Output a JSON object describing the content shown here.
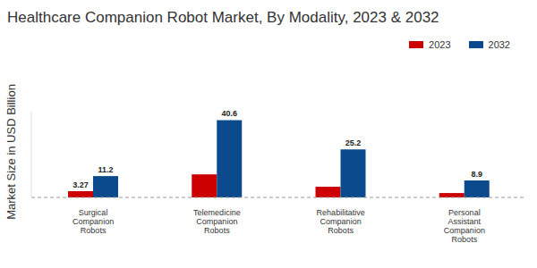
{
  "chart_data": {
    "type": "bar",
    "title": "Healthcare Companion Robot Market, By Modality, 2023 & 2032",
    "y_label": "Market Size in USD Billion",
    "categories": [
      "Surgical Companion Robots",
      "Telemedicine Companion Robots",
      "Rehabilitative Companion Robots",
      "Personal Assistant Companion Robots"
    ],
    "series": [
      {
        "name": "2023",
        "color": "#cc0000",
        "values": [
          3.27,
          12.1,
          5.6,
          2.3
        ],
        "value_labels": [
          "3.27",
          null,
          null,
          null
        ]
      },
      {
        "name": "2032",
        "color": "#0b4a8c",
        "values": [
          11.2,
          40.6,
          25.2,
          8.9
        ]
      }
    ],
    "ylim": [
      0,
      45
    ],
    "grid": false,
    "legend": "top-right",
    "tick_labels": "x",
    "data_labels": true
  }
}
